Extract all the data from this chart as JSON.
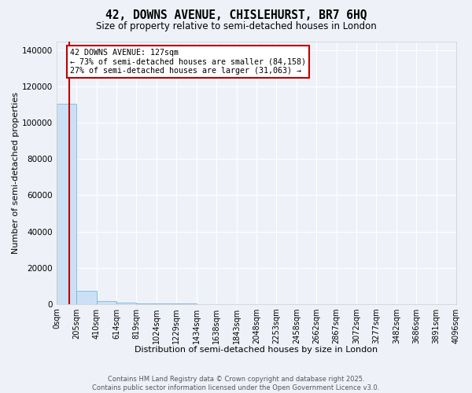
{
  "title": "42, DOWNS AVENUE, CHISLEHURST, BR7 6HQ",
  "subtitle": "Size of property relative to semi-detached houses in London",
  "xlabel": "Distribution of semi-detached houses by size in London",
  "ylabel": "Number of semi-detached properties",
  "property_size": 127,
  "pct_smaller": 73,
  "count_smaller": 84158,
  "pct_larger": 27,
  "count_larger": 31063,
  "bar_color": "#cce0f5",
  "bar_edgecolor": "#6aacd6",
  "red_line_color": "#bb0000",
  "ylim": [
    0,
    145000
  ],
  "yticks": [
    0,
    20000,
    40000,
    60000,
    80000,
    100000,
    120000,
    140000
  ],
  "bin_edges": [
    0,
    205,
    410,
    614,
    819,
    1024,
    1229,
    1434,
    1638,
    1843,
    2048,
    2253,
    2458,
    2662,
    2867,
    3072,
    3277,
    3482,
    3686,
    3891,
    4096
  ],
  "bar_heights": [
    110500,
    7200,
    1800,
    700,
    350,
    200,
    130,
    90,
    65,
    50,
    40,
    32,
    25,
    20,
    17,
    14,
    11,
    9,
    7,
    6
  ],
  "footer_line1": "Contains HM Land Registry data © Crown copyright and database right 2025.",
  "footer_line2": "Contains public sector information licensed under the Open Government Licence v3.0.",
  "background_color": "#eef2f8",
  "grid_color": "#ffffff",
  "annotation_line1": "42 DOWNS AVENUE: 127sqm",
  "annotation_line2": "← 73% of semi-detached houses are smaller (84,158)",
  "annotation_line3": "27% of semi-detached houses are larger (31,063) →"
}
